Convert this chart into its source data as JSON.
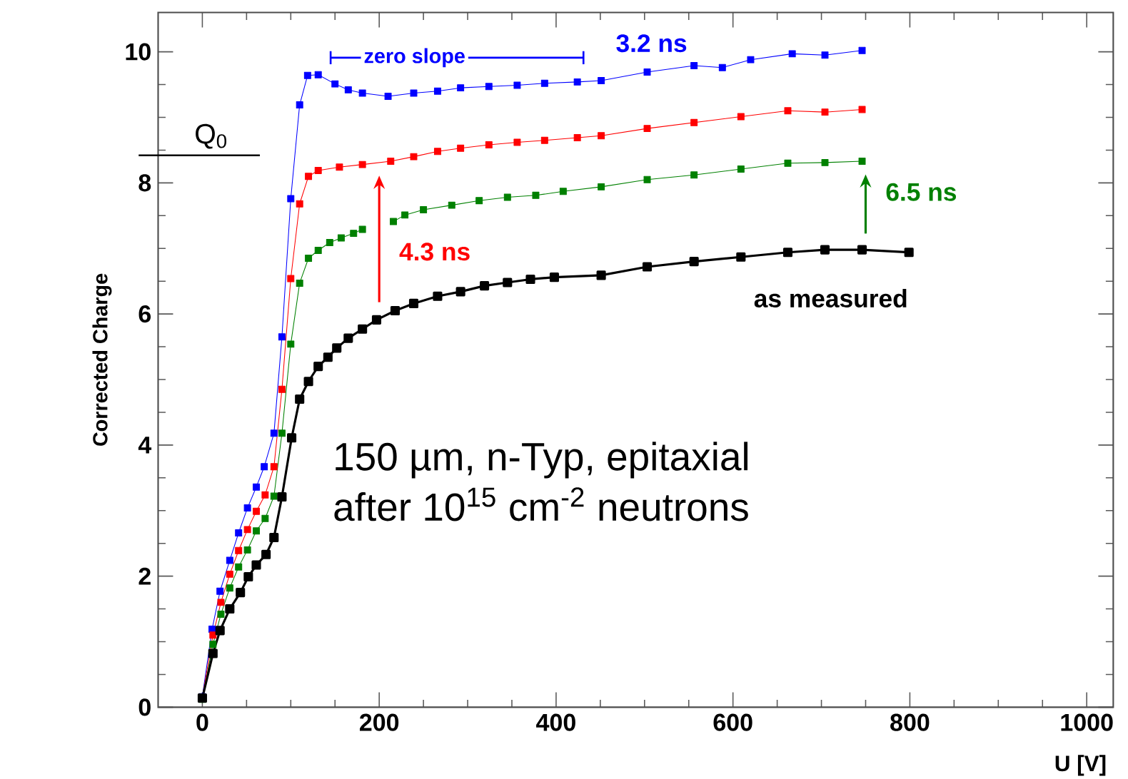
{
  "chart_data": {
    "type": "line",
    "xlabel": "U [V]",
    "ylabel": "Corrected Charge",
    "xlim": [
      -50,
      1030
    ],
    "ylim": [
      0,
      10.6
    ],
    "xticks": [
      0,
      200,
      400,
      600,
      800,
      1000
    ],
    "yticks": [
      0,
      2,
      4,
      6,
      8,
      10
    ],
    "marker": "square",
    "legend": "right",
    "grid": false,
    "series": [
      {
        "name": "3.2 ns",
        "color": "#0000ff",
        "x": [
          0,
          11,
          20,
          31,
          41,
          51,
          61,
          70,
          81,
          90,
          100,
          110,
          119,
          131,
          150,
          165,
          181,
          210,
          239,
          266,
          292,
          324,
          356,
          387,
          424,
          451,
          503,
          556,
          588,
          620,
          667,
          704,
          746
        ],
        "values": [
          0.16,
          1.19,
          1.77,
          2.24,
          2.66,
          3.04,
          3.36,
          3.67,
          4.18,
          5.65,
          7.76,
          9.19,
          9.64,
          9.65,
          9.51,
          9.42,
          9.37,
          9.32,
          9.37,
          9.4,
          9.45,
          9.47,
          9.49,
          9.52,
          9.54,
          9.56,
          9.69,
          9.79,
          9.76,
          9.88,
          9.97,
          9.95,
          10.02
        ]
      },
      {
        "name": "4.3 ns",
        "color": "#ff0000",
        "x": [
          0,
          12,
          21,
          31,
          41,
          51,
          61,
          71,
          81,
          90,
          100,
          110,
          120,
          131,
          155,
          181,
          213,
          239,
          266,
          292,
          324,
          356,
          387,
          424,
          451,
          503,
          556,
          609,
          662,
          704,
          746
        ],
        "values": [
          0.15,
          1.1,
          1.6,
          2.03,
          2.39,
          2.71,
          2.99,
          3.24,
          3.67,
          4.85,
          6.54,
          7.68,
          8.1,
          8.19,
          8.24,
          8.28,
          8.33,
          8.4,
          8.48,
          8.53,
          8.58,
          8.62,
          8.65,
          8.69,
          8.72,
          8.83,
          8.92,
          9.01,
          9.1,
          9.08,
          9.12
        ]
      },
      {
        "name": "6.5 ns",
        "color": "#008000",
        "x": [
          0,
          12,
          21,
          31,
          41,
          51,
          61,
          71,
          81,
          90,
          100,
          110,
          120,
          131,
          144,
          157,
          171,
          181,
          198,
          216,
          229,
          250,
          282,
          313,
          345,
          377,
          408,
          451,
          503,
          556,
          609,
          662,
          704,
          746
        ],
        "values": [
          0.12,
          0.96,
          1.42,
          1.82,
          2.14,
          2.4,
          2.69,
          2.88,
          3.22,
          4.18,
          5.54,
          6.47,
          6.85,
          6.97,
          7.09,
          7.16,
          7.23,
          7.29,
          null,
          7.41,
          7.51,
          7.59,
          7.66,
          7.73,
          7.78,
          7.81,
          7.87,
          7.94,
          8.05,
          8.12,
          8.21,
          8.3,
          8.31,
          8.33
        ]
      },
      {
        "name": "as measured",
        "color": "#000000",
        "x": [
          0,
          12,
          20,
          31,
          43,
          52,
          61,
          72,
          81,
          90,
          101,
          110,
          120,
          131,
          142,
          152,
          165,
          181,
          197,
          218,
          239,
          266,
          292,
          319,
          345,
          371,
          398,
          451,
          503,
          556,
          609,
          662,
          704,
          746,
          799
        ],
        "values": [
          0.14,
          0.82,
          1.17,
          1.5,
          1.75,
          1.99,
          2.17,
          2.33,
          2.59,
          3.21,
          4.11,
          4.7,
          4.97,
          5.2,
          5.34,
          5.48,
          5.63,
          5.77,
          5.91,
          6.05,
          6.16,
          6.27,
          6.34,
          6.43,
          6.48,
          6.53,
          6.56,
          6.59,
          6.72,
          6.8,
          6.87,
          6.94,
          6.98,
          6.98,
          6.94
        ]
      }
    ],
    "ref_lines": [
      {
        "axis": "y",
        "value": 8.42,
        "label": "Q$_{0}$"
      }
    ],
    "annotations": [
      "zero slope",
      "150 µm, n-Typ, epitaxial",
      "after 10$^{15}$ cm$^{-2}$ neutrons"
    ]
  }
}
